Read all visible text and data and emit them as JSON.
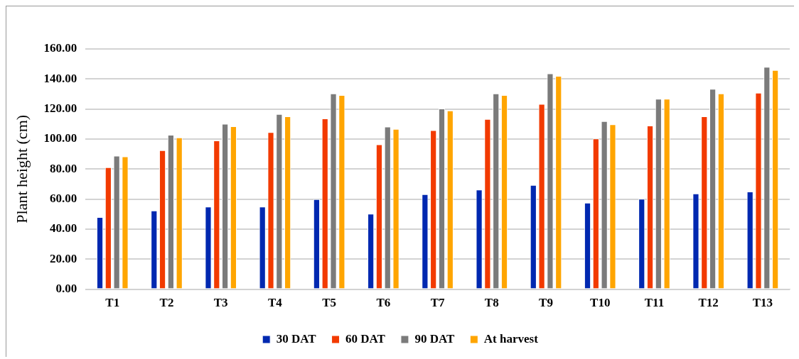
{
  "chart_data": {
    "type": "bar",
    "ylabel": "Plant height (cm)",
    "categories": [
      "T1",
      "T2",
      "T3",
      "T4",
      "T5",
      "T6",
      "T7",
      "T8",
      "T9",
      "T10",
      "T11",
      "T12",
      "T13"
    ],
    "series": [
      {
        "name": "30 DAT",
        "color": "#0028b0",
        "values": [
          48.0,
          52.4,
          55.0,
          55.0,
          59.9,
          50.2,
          63.2,
          66.3,
          69.4,
          57.6,
          60.2,
          63.7,
          65.0
        ]
      },
      {
        "name": "60 DAT",
        "color": "#f23a00",
        "values": [
          81.2,
          92.5,
          99.0,
          104.6,
          113.7,
          96.4,
          105.9,
          113.3,
          123.4,
          100.3,
          109.0,
          115.1,
          130.8
        ]
      },
      {
        "name": "90 DAT",
        "color": "#7b7b7b",
        "values": [
          88.9,
          102.8,
          110.1,
          116.7,
          130.3,
          108.2,
          120.3,
          130.3,
          143.7,
          111.9,
          126.8,
          133.4,
          148.1
        ]
      },
      {
        "name": "At harvest",
        "color": "#ffa500",
        "values": [
          88.4,
          101.1,
          108.5,
          115.1,
          129.3,
          106.7,
          119.0,
          129.3,
          142.1,
          109.8,
          126.8,
          130.3,
          146.0
        ]
      }
    ],
    "ylim": [
      0,
      160
    ],
    "yticks": [
      {
        "value": 0,
        "label": "0.00"
      },
      {
        "value": 20,
        "label": "20.00"
      },
      {
        "value": 40,
        "label": "40.00"
      },
      {
        "value": 60,
        "label": "60.00"
      },
      {
        "value": 80,
        "label": "80.00"
      },
      {
        "value": 100,
        "label": "100.00"
      },
      {
        "value": 120,
        "label": "120.00"
      },
      {
        "value": 140,
        "label": "140.00"
      },
      {
        "value": 160,
        "label": "160.00"
      }
    ],
    "grid": "y",
    "legend": "bottom"
  }
}
